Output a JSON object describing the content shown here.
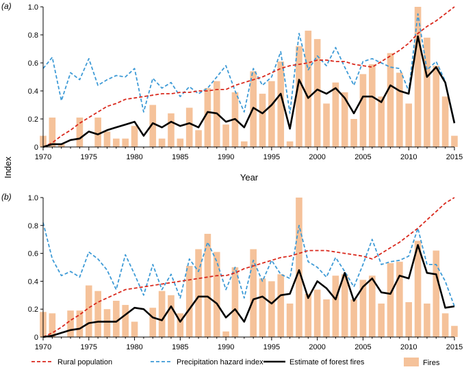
{
  "figure": {
    "ylabel": "Index",
    "xlabel_top": "Year"
  },
  "legend": [
    {
      "key": "rural",
      "label": "Rural population",
      "color": "#d9281c",
      "style": "dashed"
    },
    {
      "key": "precip",
      "label": "Precipitation hazard index",
      "color": "#3d9ad6",
      "style": "dashed"
    },
    {
      "key": "estimate",
      "label": "Estimate of forest fires",
      "color": "#000000",
      "style": "solid"
    },
    {
      "key": "fires",
      "label": "Fires",
      "color": "#f5c29a",
      "style": "bar"
    }
  ],
  "chart_data": [
    {
      "panel_label": "(a)",
      "type": "bar",
      "x": [
        1970,
        1971,
        1972,
        1973,
        1974,
        1975,
        1976,
        1977,
        1978,
        1979,
        1980,
        1981,
        1982,
        1983,
        1984,
        1985,
        1986,
        1987,
        1988,
        1989,
        1990,
        1991,
        1992,
        1993,
        1994,
        1995,
        1996,
        1997,
        1998,
        1999,
        2000,
        2001,
        2002,
        2003,
        2004,
        2005,
        2006,
        2007,
        2008,
        2009,
        2010,
        2011,
        2012,
        2013,
        2014,
        2015
      ],
      "xlim": [
        1970,
        2015
      ],
      "ylim": [
        0,
        1
      ],
      "xticks": [
        1970,
        1975,
        1980,
        1985,
        1990,
        1995,
        2000,
        2005,
        2010,
        2015
      ],
      "yticks": [
        "0",
        "0.2",
        "0.4",
        "0.6",
        "0.8",
        "1.0"
      ],
      "xlabel": "Year",
      "ylabel": "Index",
      "series": [
        {
          "name": "Fires",
          "type": "bar",
          "values": [
            0.08,
            0.21,
            0.02,
            0.0,
            0.21,
            0.0,
            0.21,
            0.11,
            0.06,
            0.06,
            0.15,
            0.0,
            0.3,
            0.06,
            0.24,
            0.06,
            0.28,
            0.12,
            0.42,
            0.47,
            0.16,
            0.39,
            0.04,
            0.54,
            0.38,
            0.47,
            0.61,
            0.04,
            0.72,
            0.83,
            0.77,
            0.31,
            0.46,
            0.39,
            0.2,
            0.52,
            0.59,
            0.36,
            0.67,
            0.53,
            0.31,
            1.0,
            0.78,
            0.58,
            0.36,
            0.08
          ]
        },
        {
          "name": "Precipitation hazard index",
          "type": "line",
          "values": [
            0.56,
            0.64,
            0.33,
            0.53,
            0.48,
            0.63,
            0.44,
            0.48,
            0.51,
            0.5,
            0.56,
            0.25,
            0.49,
            0.42,
            0.46,
            0.36,
            0.43,
            0.38,
            0.42,
            0.5,
            0.58,
            0.4,
            0.25,
            0.56,
            0.44,
            0.5,
            0.68,
            0.24,
            0.81,
            0.55,
            0.65,
            0.58,
            0.71,
            0.57,
            0.44,
            0.61,
            0.63,
            0.6,
            0.57,
            0.56,
            0.4,
            0.95,
            0.55,
            0.61,
            0.47,
            0.18
          ]
        },
        {
          "name": "Rural population",
          "type": "line",
          "values": [
            0.0,
            0.03,
            0.08,
            0.12,
            0.17,
            0.21,
            0.25,
            0.29,
            0.31,
            0.34,
            0.35,
            0.36,
            0.37,
            0.38,
            0.38,
            0.39,
            0.39,
            0.4,
            0.4,
            0.41,
            0.41,
            0.44,
            0.46,
            0.48,
            0.5,
            0.53,
            0.56,
            0.58,
            0.59,
            0.6,
            0.62,
            0.62,
            0.61,
            0.61,
            0.59,
            0.58,
            0.57,
            0.61,
            0.65,
            0.69,
            0.74,
            0.81,
            0.86,
            0.9,
            0.95,
            1.0
          ]
        },
        {
          "name": "Estimate of forest fires",
          "type": "line",
          "values": [
            0.0,
            0.02,
            0.02,
            0.05,
            0.06,
            0.11,
            0.09,
            0.12,
            0.14,
            0.16,
            0.18,
            0.08,
            0.17,
            0.14,
            0.18,
            0.15,
            0.17,
            0.14,
            0.25,
            0.24,
            0.18,
            0.2,
            0.14,
            0.28,
            0.24,
            0.3,
            0.38,
            0.13,
            0.48,
            0.35,
            0.41,
            0.38,
            0.42,
            0.35,
            0.24,
            0.36,
            0.36,
            0.32,
            0.44,
            0.4,
            0.38,
            0.79,
            0.5,
            0.57,
            0.46,
            0.17
          ]
        }
      ]
    },
    {
      "panel_label": "(b)",
      "type": "bar",
      "x": [
        1970,
        1971,
        1972,
        1973,
        1974,
        1975,
        1976,
        1977,
        1978,
        1979,
        1980,
        1981,
        1982,
        1983,
        1984,
        1985,
        1986,
        1987,
        1988,
        1989,
        1990,
        1991,
        1992,
        1993,
        1994,
        1995,
        1996,
        1997,
        1998,
        1999,
        2000,
        2001,
        2002,
        2003,
        2004,
        2005,
        2006,
        2007,
        2008,
        2009,
        2010,
        2011,
        2012,
        2013,
        2014,
        2015
      ],
      "xlim": [
        1970,
        2015
      ],
      "ylim": [
        0,
        1
      ],
      "xticks": [
        1970,
        1975,
        1980,
        1985,
        1990,
        1995,
        2000,
        2005,
        2010,
        2015
      ],
      "yticks": [
        "0",
        "0.2",
        "0.4",
        "0.6",
        "0.8",
        "1.0"
      ],
      "xlabel": "",
      "ylabel": "Index",
      "series": [
        {
          "name": "Fires",
          "type": "bar",
          "values": [
            0.18,
            0.17,
            0.0,
            0.19,
            0.19,
            0.37,
            0.33,
            0.2,
            0.26,
            0.23,
            0.11,
            0.0,
            0.21,
            0.33,
            0.3,
            0.17,
            0.51,
            0.63,
            0.74,
            0.61,
            0.04,
            0.5,
            0.0,
            0.63,
            0.42,
            0.4,
            0.45,
            0.24,
            1.0,
            0.31,
            0.34,
            0.27,
            0.44,
            0.45,
            0.27,
            0.41,
            0.44,
            0.24,
            0.53,
            0.54,
            0.25,
            0.69,
            0.24,
            0.62,
            0.17,
            0.08
          ]
        },
        {
          "name": "Precipitation hazard index",
          "type": "line",
          "values": [
            0.82,
            0.56,
            0.44,
            0.47,
            0.43,
            0.61,
            0.56,
            0.48,
            0.34,
            0.59,
            0.45,
            0.3,
            0.52,
            0.34,
            0.45,
            0.28,
            0.56,
            0.47,
            0.68,
            0.54,
            0.34,
            0.5,
            0.28,
            0.55,
            0.4,
            0.55,
            0.45,
            0.42,
            0.8,
            0.54,
            0.5,
            0.43,
            0.57,
            0.47,
            0.36,
            0.52,
            0.7,
            0.52,
            0.54,
            0.55,
            0.58,
            0.78,
            0.52,
            0.52,
            0.4,
            0.22
          ]
        },
        {
          "name": "Rural population",
          "type": "line",
          "values": [
            0.0,
            0.03,
            0.07,
            0.12,
            0.16,
            0.21,
            0.25,
            0.28,
            0.31,
            0.34,
            0.35,
            0.36,
            0.37,
            0.38,
            0.39,
            0.4,
            0.41,
            0.42,
            0.43,
            0.44,
            0.44,
            0.46,
            0.49,
            0.51,
            0.53,
            0.55,
            0.57,
            0.58,
            0.6,
            0.62,
            0.62,
            0.62,
            0.61,
            0.6,
            0.59,
            0.58,
            0.56,
            0.6,
            0.64,
            0.68,
            0.73,
            0.78,
            0.84,
            0.9,
            0.96,
            1.0
          ]
        },
        {
          "name": "Estimate of forest fires",
          "type": "line",
          "values": [
            0.0,
            0.01,
            0.03,
            0.05,
            0.06,
            0.1,
            0.11,
            0.11,
            0.11,
            0.16,
            0.21,
            0.2,
            0.14,
            0.12,
            0.22,
            0.11,
            0.2,
            0.29,
            0.29,
            0.24,
            0.14,
            0.2,
            0.11,
            0.27,
            0.29,
            0.24,
            0.3,
            0.31,
            0.48,
            0.28,
            0.4,
            0.35,
            0.27,
            0.46,
            0.26,
            0.36,
            0.42,
            0.32,
            0.31,
            0.44,
            0.42,
            0.66,
            0.46,
            0.45,
            0.21,
            0.22
          ]
        }
      ]
    }
  ]
}
